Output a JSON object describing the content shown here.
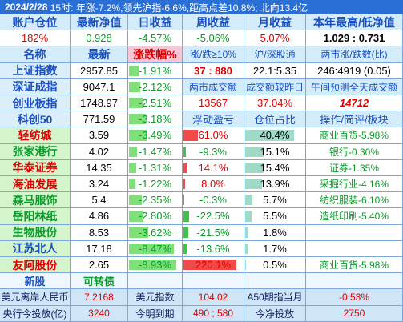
{
  "header": {
    "date": "2024/2/28",
    "summary": "15时: 年涨-7.2%,领先沪指-6.6%,距高点差10.8%; 北向13.4亿"
  },
  "table": {
    "rows": [
      [
        "账户仓位",
        "最新净值",
        "日收益",
        "周收益",
        "月收益",
        "本年最高/低净值"
      ],
      [
        "182%",
        "0.928",
        "-4.57%",
        "-5.06%",
        "5.07%",
        "1.029 : 0.731"
      ],
      [
        "名称",
        "最新",
        "涨跌幅%",
        "涨/跌≥10%",
        "沪/深股通",
        "两市涨/跌数(比)"
      ],
      [
        "上证指数",
        "2957.85",
        "-1.91%",
        "37 : 880",
        "22.1:5.35",
        "246:4919 (0.05)"
      ],
      [
        "深证成指",
        "9047.1",
        "-2.12%",
        "两市成交额",
        "成交额较昨日",
        "午间预测全天成交额"
      ],
      [
        "创业板指",
        "1748.97",
        "-2.51%",
        "13567",
        "37.04%",
        "14712"
      ],
      [
        "科创50",
        "771.59",
        "-3.18%",
        "浮动盈亏",
        "仓位占比",
        "操作/简评/板块"
      ],
      [
        "轻纺城",
        "3.59",
        "-3.49%",
        "61.0%",
        "40.4%",
        "商业百货-5.98%"
      ],
      [
        "张家港行",
        "4.02",
        "-1.47%",
        "-9.3%",
        "15.1%",
        "银行-0.30%"
      ],
      [
        "华泰证券",
        "14.35",
        "-1.31%",
        "14.1%",
        "15.4%",
        "证券-1.35%"
      ],
      [
        "海油发展",
        "3.24",
        "-1.22%",
        "8.0%",
        "13.9%",
        "采掘行业-4.16%"
      ],
      [
        "森马服饰",
        "5.4",
        "-2.35%",
        "-0.3%",
        "5.7%",
        "纺织服装-6.10%"
      ],
      [
        "岳阳林纸",
        "4.86",
        "-2.80%",
        "-22.5%",
        "5.5%",
        "造纸印刷-5.40%"
      ],
      [
        "生物股份",
        "8.53",
        "-3.62%",
        "-21.5%",
        "1.8%"
      ],
      [
        "江苏北人",
        "17.18",
        "-8.47%",
        "-13.6%",
        "1.7%"
      ],
      [
        "友阿股份",
        "2.65",
        "-8.93%",
        "220.1%",
        "0.5%",
        "商业百货-5.98%"
      ],
      [
        "新股",
        "可转债"
      ]
    ]
  },
  "footer": {
    "rows": [
      [
        "美元离岸人民币",
        "7.2168",
        "美元指数",
        "104.02",
        "A50期指当月",
        "-0.53%"
      ],
      [
        "央行今投放(亿)",
        "3240",
        "今明到期",
        "490 ; 580",
        "今净投放",
        "2750"
      ]
    ]
  }
}
